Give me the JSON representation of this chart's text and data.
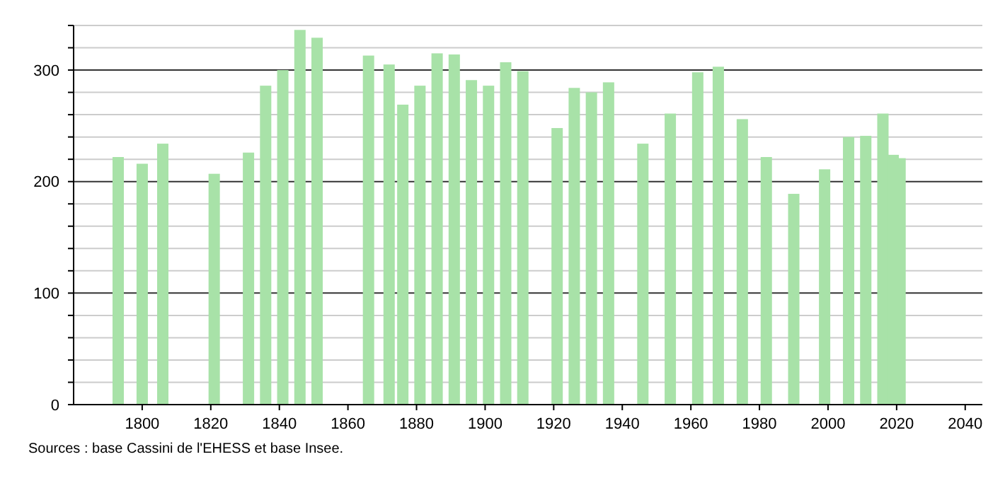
{
  "chart_data": {
    "type": "bar",
    "x": [
      1793,
      1800,
      1806,
      1821,
      1831,
      1836,
      1841,
      1846,
      1851,
      1866,
      1872,
      1876,
      1881,
      1886,
      1891,
      1896,
      1901,
      1906,
      1911,
      1921,
      1926,
      1931,
      1936,
      1946,
      1954,
      1962,
      1968,
      1975,
      1982,
      1990,
      1999,
      2006,
      2011,
      2016,
      2019,
      2021
    ],
    "values": [
      222,
      216,
      234,
      207,
      226,
      286,
      300,
      336,
      329,
      313,
      305,
      269,
      286,
      315,
      314,
      291,
      286,
      307,
      299,
      248,
      284,
      280,
      289,
      234,
      261,
      298,
      303,
      256,
      222,
      189,
      211,
      240,
      241,
      261,
      224,
      221
    ],
    "color": "#a8e2a8",
    "xlim": [
      1780,
      2045
    ],
    "xticks": [
      1800,
      1820,
      1840,
      1860,
      1880,
      1900,
      1920,
      1940,
      1960,
      1980,
      2000,
      2020,
      2040
    ],
    "ylim": [
      0,
      340
    ],
    "yticks": [
      0,
      {
        "value": 20,
        "label": null
      },
      {
        "value": 40,
        "label": null
      },
      {
        "value": 60,
        "label": null
      },
      {
        "value": 80,
        "label": null
      },
      100,
      {
        "value": 120,
        "label": null
      },
      {
        "value": 140,
        "label": null
      },
      {
        "value": 160,
        "label": null
      },
      {
        "value": 180,
        "label": null
      },
      200,
      {
        "value": 220,
        "label": null
      },
      {
        "value": 240,
        "label": null
      },
      {
        "value": 260,
        "label": null
      },
      {
        "value": 280,
        "label": null
      },
      300,
      {
        "value": 320,
        "label": null
      },
      {
        "value": 340,
        "label": null
      }
    ],
    "grid": "y",
    "annotations": [
      "Sources : base Cassini de l'EHESS et base Insee."
    ]
  }
}
